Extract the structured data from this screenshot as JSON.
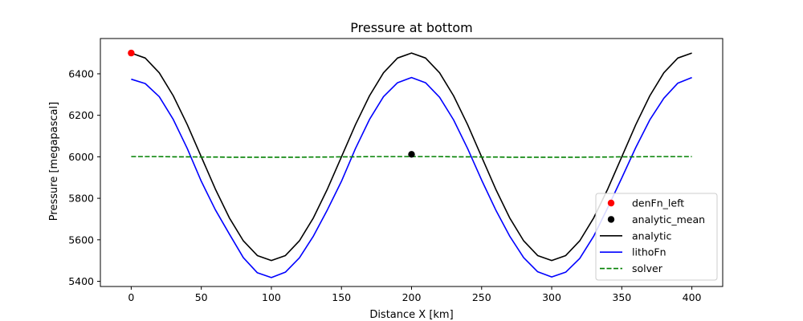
{
  "chart_data": {
    "type": "line",
    "title": "Pressure at bottom",
    "xlabel": "Distance X [km]",
    "ylabel": "Pressure [megapascal]",
    "xlim": [
      -22,
      422
    ],
    "ylim": [
      5375,
      6570
    ],
    "xticks": [
      0,
      50,
      100,
      150,
      200,
      250,
      300,
      350,
      400
    ],
    "yticks": [
      5400,
      5600,
      5800,
      6000,
      6200,
      6400
    ],
    "grid": false,
    "legend_position": "lower right",
    "x": [
      0,
      10,
      20,
      30,
      40,
      50,
      60,
      70,
      80,
      90,
      100,
      110,
      120,
      130,
      140,
      150,
      160,
      170,
      180,
      190,
      200,
      210,
      220,
      230,
      240,
      250,
      260,
      270,
      280,
      290,
      300,
      310,
      320,
      330,
      340,
      350,
      360,
      370,
      380,
      390,
      400
    ],
    "series": [
      {
        "name": "analytic",
        "style": "line",
        "color": "#000000",
        "dash": "solid",
        "values": [
          6500,
          6476,
          6405,
          6294,
          6155,
          6000,
          5845,
          5706,
          5595,
          5524,
          5500,
          5524,
          5595,
          5706,
          5845,
          6000,
          6155,
          6294,
          6405,
          6476,
          6500,
          6476,
          6405,
          6294,
          6155,
          6000,
          5845,
          5706,
          5595,
          5524,
          5500,
          5524,
          5595,
          5706,
          5845,
          6000,
          6155,
          6294,
          6405,
          6476,
          6500
        ]
      },
      {
        "name": "lithoFn",
        "style": "line",
        "color": "#0000ff",
        "dash": "solid",
        "values": [
          6374,
          6353,
          6290,
          6180,
          6040,
          5882,
          5745,
          5628,
          5514,
          5441,
          5418,
          5444,
          5513,
          5618,
          5745,
          5882,
          6040,
          6180,
          6290,
          6357,
          6382,
          6357,
          6287,
          6178,
          6040,
          5888,
          5745,
          5618,
          5514,
          5446,
          5421,
          5444,
          5510,
          5618,
          5755,
          5898,
          6045,
          6178,
          6282,
          6355,
          6382
        ]
      },
      {
        "name": "solver",
        "style": "line",
        "color": "#008000",
        "dash": "dashed",
        "values": [
          6001,
          6001,
          6001,
          6000,
          6000,
          5999,
          5999,
          5998,
          5998,
          5998,
          5998,
          5998,
          5998,
          5999,
          5999,
          6000,
          6000,
          6001,
          6001,
          6001,
          6001,
          6001,
          6001,
          6000,
          6000,
          5999,
          5999,
          5998,
          5998,
          5998,
          5998,
          5998,
          5998,
          5999,
          5999,
          6000,
          6000,
          6001,
          6001,
          6001,
          6001
        ]
      }
    ],
    "points": [
      {
        "name": "denFn_left",
        "color": "#ff0000",
        "x": 0,
        "y": 6500
      },
      {
        "name": "analytic_mean",
        "color": "#000000",
        "x": 200,
        "y": 6012
      }
    ],
    "legend_order": [
      "denFn_left",
      "analytic_mean",
      "analytic",
      "lithoFn",
      "solver"
    ]
  }
}
